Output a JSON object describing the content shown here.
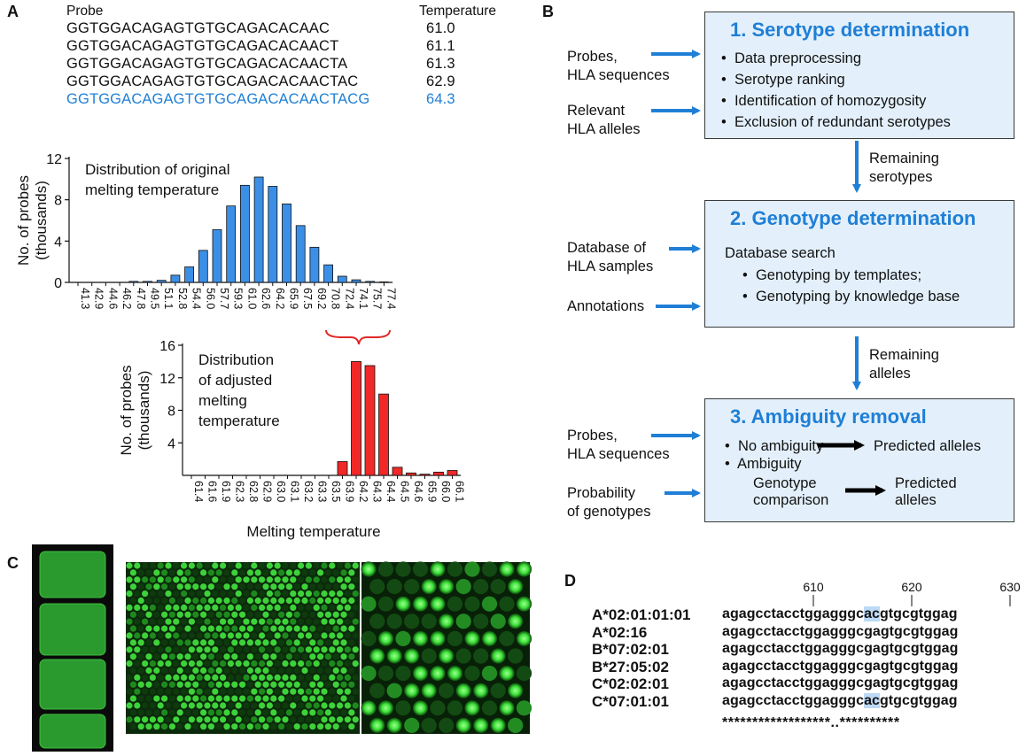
{
  "panels": {
    "A": "A",
    "B": "B",
    "C": "C",
    "D": "D"
  },
  "probe_table": {
    "header_probe": "Probe",
    "header_temp": "Temperature",
    "rows": [
      {
        "seq": "GGTGGACAGAGTGTGCAGACACAAC",
        "temp": "61.0",
        "color": "#111111"
      },
      {
        "seq": "GGTGGACAGAGTGTGCAGACACAACT",
        "temp": "61.1",
        "color": "#111111"
      },
      {
        "seq": "GGTGGACAGAGTGTGCAGACACAACTA",
        "temp": "61.3",
        "color": "#111111"
      },
      {
        "seq": "GGTGGACAGAGTGTGCAGACACAACTAC",
        "temp": "62.9",
        "color": "#111111"
      },
      {
        "seq": "GGTGGACAGAGTGTGCAGACACAACTACG",
        "temp": "64.3",
        "color": "#1f7fd6"
      }
    ]
  },
  "chart_data": [
    {
      "type": "bar",
      "title": "Distribution of original melting temperature",
      "title_lines": [
        "Distribution of original",
        "melting temperature"
      ],
      "ylabel_lines": [
        "No. of probes",
        "(thousands)"
      ],
      "ylim": [
        0,
        12
      ],
      "yticks": [
        0,
        4,
        8,
        12
      ],
      "categories": [
        "41.3",
        "42.9",
        "44.6",
        "46.2",
        "47.8",
        "49.5",
        "51.1",
        "52.8",
        "54.4",
        "56.0",
        "57.7",
        "59.3",
        "61.0",
        "62.6",
        "64.2",
        "65.9",
        "67.5",
        "69.2",
        "70.8",
        "72.4",
        "74.1",
        "75.7",
        "77.4"
      ],
      "values": [
        0,
        0,
        0,
        0,
        0.1,
        0.1,
        0.2,
        0.7,
        1.5,
        3.1,
        5.1,
        7.4,
        9.4,
        10.2,
        9.3,
        7.6,
        5.5,
        3.4,
        1.7,
        0.6,
        0.25,
        0.1,
        0.05
      ],
      "color": "#3c8fe6"
    },
    {
      "type": "bar",
      "title": "Distribution of adjusted melting temperature",
      "title_lines": [
        "Distribution",
        "of adjusted",
        "melting",
        "temperature"
      ],
      "ylabel_lines": [
        "No. of probes",
        "(thousands)"
      ],
      "xlabel": "Melting temperature",
      "ylim": [
        0,
        16
      ],
      "yticks": [
        4,
        8,
        12,
        16
      ],
      "categories": [
        "61.4",
        "61.6",
        "61.9",
        "62.3",
        "62.8",
        "62.9",
        "63.0",
        "63.1",
        "63.2",
        "63.3",
        "63.5",
        "63.9",
        "64.2",
        "64.3",
        "64.4",
        "64.5",
        "64.6",
        "65.9",
        "66.0",
        "66.1"
      ],
      "values": [
        0,
        0,
        0,
        0,
        0,
        0,
        0,
        0,
        0,
        0,
        0,
        1.7,
        14.0,
        13.5,
        10.0,
        1.0,
        0.3,
        0.15,
        0.4,
        0.6
      ],
      "color": "#f02828"
    }
  ],
  "flow": {
    "box1": {
      "title": "1. Serotype determination",
      "items": [
        "Data preprocessing",
        "Serotype ranking",
        "Identification of homozygosity",
        "Exclusion of redundant serotypes"
      ]
    },
    "in1a": [
      "Probes,",
      "HLA sequences"
    ],
    "in1b": [
      "Relevant",
      "HLA alleles"
    ],
    "arrow1": [
      "Remaining",
      "serotypes"
    ],
    "box2": {
      "title": "2. Genotype determination",
      "search": "Database search",
      "items": [
        "Genotyping by templates;",
        "Genotyping by knowledge base"
      ]
    },
    "in2a": [
      "Database of",
      "HLA samples"
    ],
    "in2b": [
      "Annotations"
    ],
    "arrow2": [
      "Remaining",
      "alleles"
    ],
    "box3": {
      "title": "3. Ambiguity removal",
      "no_ambiguity": "No ambiguity",
      "predicted1": "Predicted alleles",
      "ambiguity": "Ambiguity",
      "comparison": [
        "Genotype",
        "comparison"
      ],
      "predicted2": [
        "Predicted",
        "alleles"
      ]
    },
    "in3a": [
      "Probes,",
      "HLA sequences"
    ],
    "in3b": [
      "Probability",
      "of genotypes"
    ],
    "arrow_color": "#1f7fd6"
  },
  "alignment": {
    "positions": [
      "610",
      "620",
      "630"
    ],
    "rows": [
      {
        "name": "A*02:01:01:01",
        "pre": "agagcctacctggagggc",
        "hl": "ac",
        "post": "gtgcgtggag"
      },
      {
        "name": "A*02:16",
        "pre": "agagcctacctggagggc",
        "hl": "ga",
        "post": "gtgcgtggag"
      },
      {
        "name": "B*07:02:01",
        "pre": "agagcctacctggagggc",
        "hl": "ga",
        "post": "gtgcgtggag"
      },
      {
        "name": "B*27:05:02",
        "pre": "agagcctacctggagggc",
        "hl": "ga",
        "post": "gtgcgtggag"
      },
      {
        "name": "C*02:02:01",
        "pre": "agagcctacctggagggc",
        "hl": "ga",
        "post": "gtgcgtggag"
      },
      {
        "name": "C*07:01:01",
        "pre": "agagcctacctggagggc",
        "hl": "ac",
        "post": "gtgcgtggag"
      }
    ],
    "consensus": "******************..**********",
    "highlight_color": "#bcd9f5"
  }
}
